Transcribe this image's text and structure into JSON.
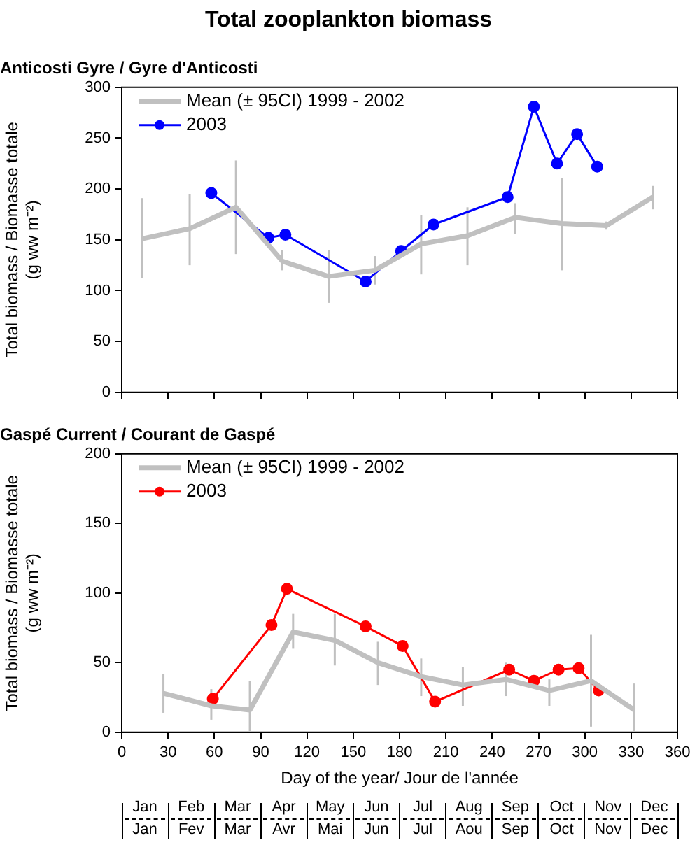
{
  "chart_data": [
    {
      "type": "line",
      "title": "Total zooplankton biomass",
      "subtitle": "Anticosti Gyre / Gyre d'Anticosti",
      "ylabel": "Total biomass / Biomasse totale\n(g ww m⁻²)",
      "xlim": [
        0,
        360
      ],
      "xticks": [
        0,
        30,
        60,
        90,
        120,
        150,
        180,
        210,
        240,
        270,
        300,
        330,
        360
      ],
      "ylim": [
        0,
        300
      ],
      "yticks": [
        0,
        50,
        100,
        150,
        200,
        250,
        300
      ],
      "tick_labels": "y",
      "grid": false,
      "legend": "top left",
      "series": [
        {
          "name": "Mean (± 95CI) 1999 - 2002",
          "color": "#c0c0c0",
          "marker": "none",
          "x": [
            13,
            44,
            74,
            104,
            134,
            164,
            194,
            224,
            255,
            285,
            314,
            344
          ],
          "values": [
            151,
            161,
            182,
            129,
            114,
            120,
            146,
            154,
            172,
            166,
            164,
            192
          ],
          "errors": [
            [
              112,
              191
            ],
            [
              125,
              195
            ],
            [
              136,
              228
            ],
            [
              120,
              140
            ],
            [
              88,
              140
            ],
            [
              106,
              134
            ],
            [
              116,
              174
            ],
            [
              125,
              182
            ],
            [
              156,
              186
            ],
            [
              120,
              211
            ],
            [
              160,
              168
            ],
            [
              180,
              203
            ]
          ]
        },
        {
          "name": "2003",
          "color": "#0000ff",
          "marker": "circle",
          "x": [
            58,
            95,
            106,
            158,
            181,
            202,
            250,
            267,
            282,
            295,
            308
          ],
          "values": [
            196,
            152,
            155,
            109,
            139,
            165,
            192,
            281,
            225,
            254,
            222
          ]
        }
      ]
    },
    {
      "type": "line",
      "title": "Gaspé Current / Courant de Gaspé",
      "ylabel": "Total biomass / Biomasse totale\n(g ww m⁻²)",
      "xlabel": "Day of the year/ Jour de l'année",
      "xlim": [
        0,
        360
      ],
      "xticks": [
        0,
        30,
        60,
        90,
        120,
        150,
        180,
        210,
        240,
        270,
        300,
        330,
        360
      ],
      "ylim": [
        0,
        200
      ],
      "yticks": [
        0,
        50,
        100,
        150,
        200
      ],
      "annotations": [
        "Jan\nJan",
        "Feb\nFev",
        "Mar\nMar",
        "Apr\nAvr",
        "May\nMai",
        "Jun\nJun",
        "Jul\nJul",
        "Aug\nAou",
        "Sep\nSep",
        "Oct\nOct",
        "Nov\nNov",
        "Dec\nDec"
      ],
      "grid": false,
      "legend": "top left",
      "series": [
        {
          "name": "Mean (± 95CI) 1999 - 2002",
          "color": "#c0c0c0",
          "marker": "none",
          "x": [
            27,
            58,
            83,
            111,
            138,
            166,
            194,
            221,
            249,
            277,
            304,
            332
          ],
          "values": [
            28,
            19,
            16,
            72,
            66,
            50,
            40,
            34,
            38,
            30,
            37,
            16
          ],
          "errors": [
            [
              14,
              42
            ],
            [
              9,
              31
            ],
            [
              0,
              37
            ],
            [
              60,
              85
            ],
            [
              48,
              85
            ],
            [
              34,
              65
            ],
            [
              26,
              53
            ],
            [
              19,
              47
            ],
            [
              26,
              50
            ],
            [
              19,
              38
            ],
            [
              4,
              70
            ],
            [
              0,
              35
            ]
          ]
        },
        {
          "name": "2003",
          "color": "#ff0000",
          "marker": "circle",
          "x": [
            59,
            97,
            107,
            158,
            182,
            203,
            251,
            267,
            283,
            296,
            309
          ],
          "values": [
            24,
            77,
            103,
            76,
            62,
            22,
            45,
            37,
            45,
            46,
            30
          ]
        }
      ]
    }
  ]
}
